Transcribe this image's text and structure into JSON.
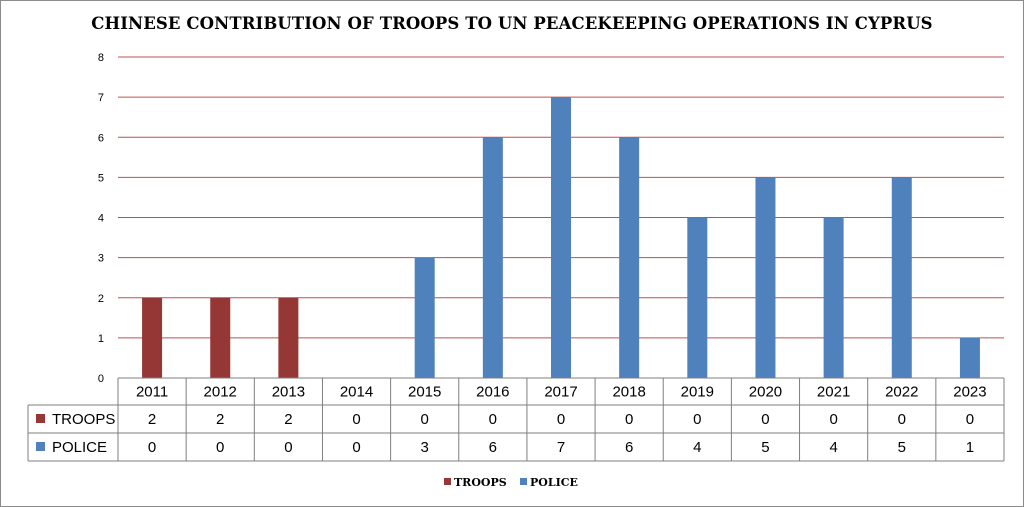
{
  "chart_data": {
    "type": "bar",
    "title": "CHINESE CONTRIBUTION OF TROOPS TO UN PEACEKEEPING OPERATIONS IN CYPRUS",
    "categories": [
      "2011",
      "2012",
      "2013",
      "2014",
      "2015",
      "2016",
      "2017",
      "2018",
      "2019",
      "2020",
      "2021",
      "2022",
      "2023"
    ],
    "series": [
      {
        "name": "TROOPS",
        "color": "#953735",
        "values": [
          2,
          2,
          2,
          0,
          0,
          0,
          0,
          0,
          0,
          0,
          0,
          0,
          0
        ]
      },
      {
        "name": "POLICE",
        "color": "#4f81bd",
        "values": [
          0,
          0,
          0,
          0,
          3,
          6,
          7,
          6,
          4,
          5,
          4,
          5,
          1
        ]
      }
    ],
    "ylim": [
      0,
      8
    ],
    "yticks": [
      0,
      1,
      2,
      3,
      4,
      5,
      6,
      7,
      8
    ],
    "grid": true,
    "gridline_color": "#c0504d",
    "data_table": true,
    "legend": "bottom-center"
  }
}
